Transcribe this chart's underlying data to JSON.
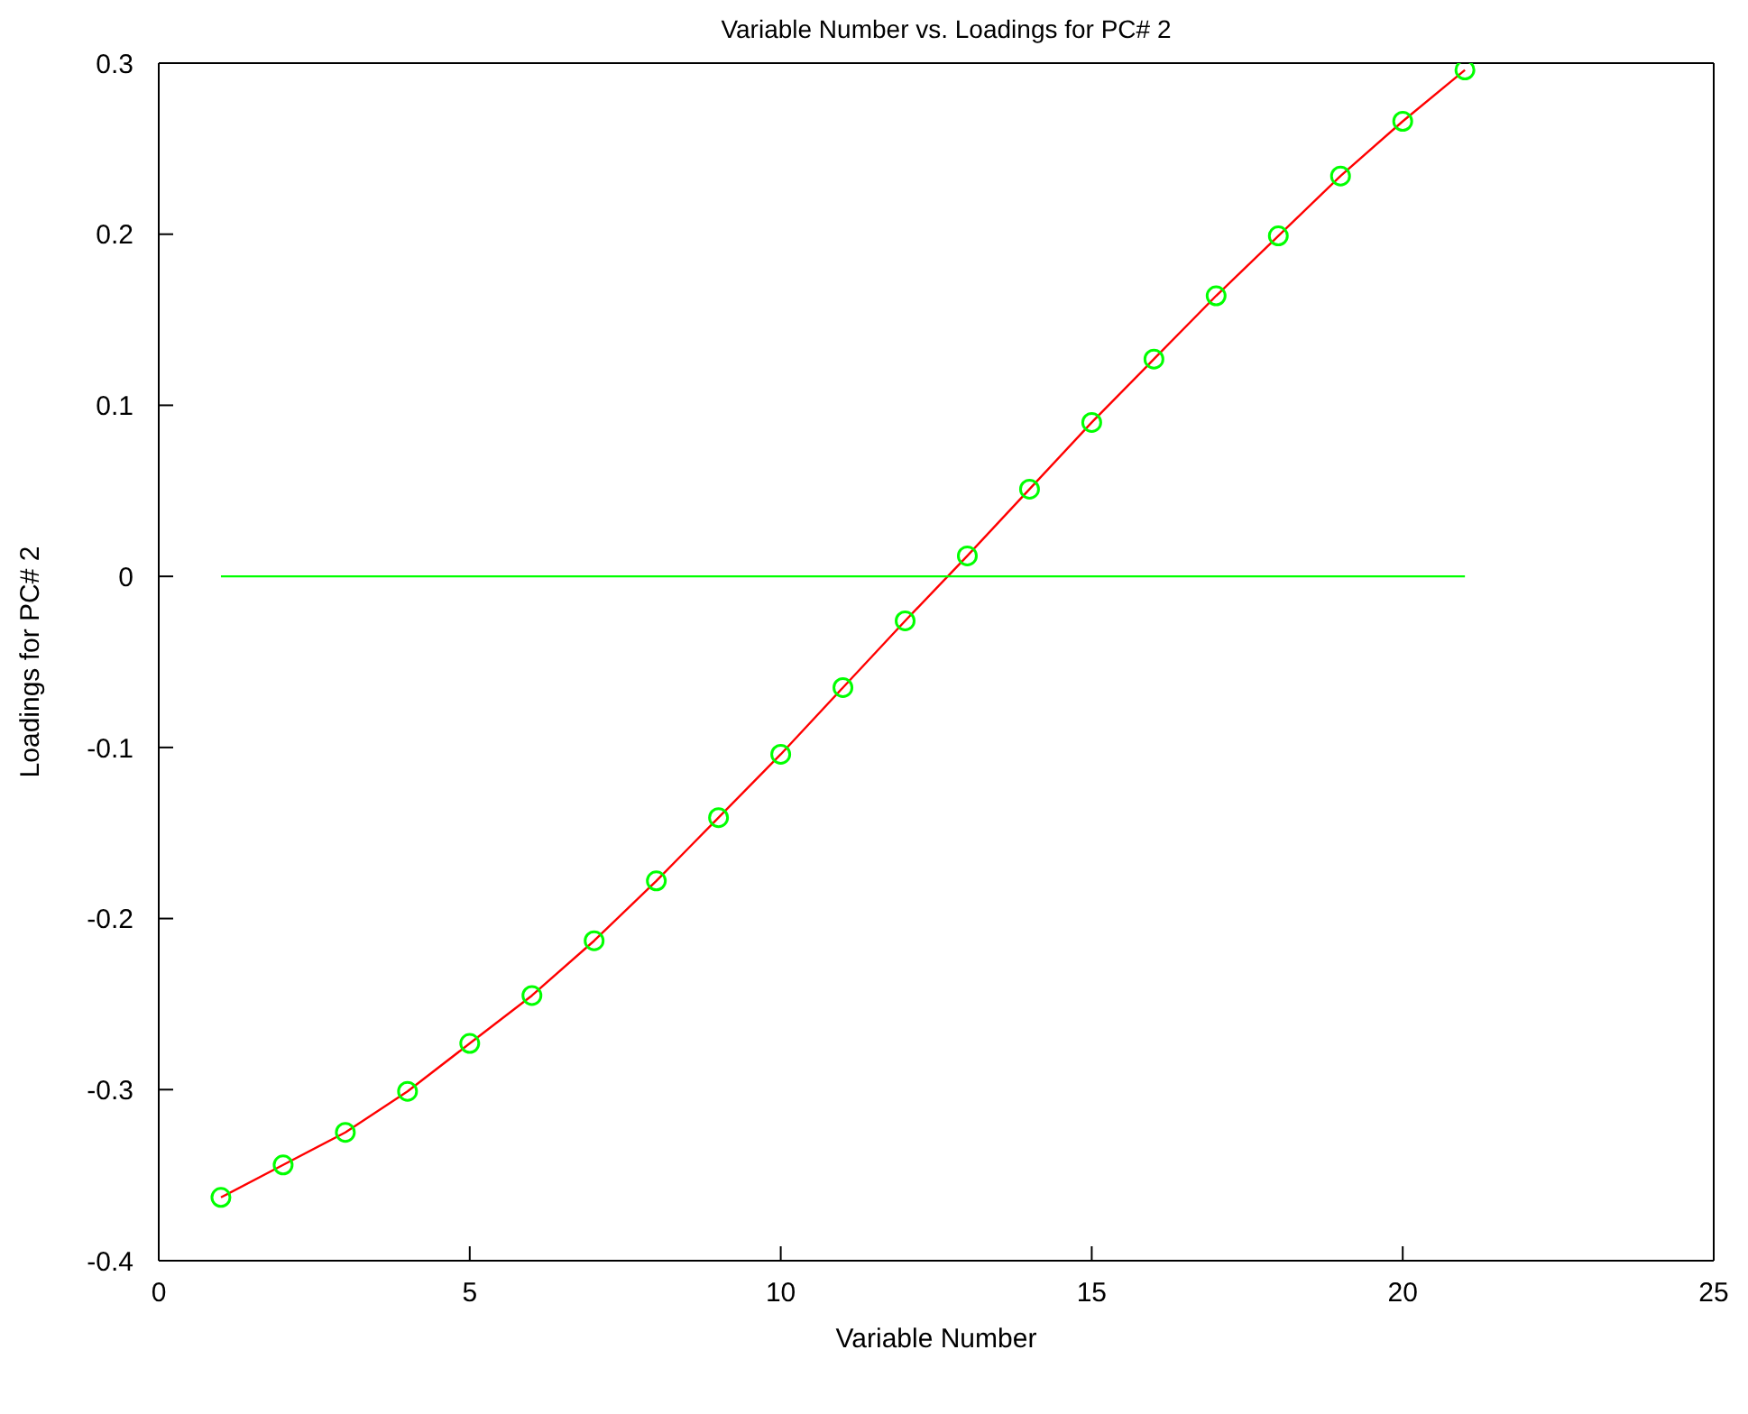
{
  "chart_data": {
    "type": "line",
    "title": "Variable Number vs. Loadings for PC# 2",
    "xlabel": "Variable Number",
    "ylabel": "Loadings for PC# 2",
    "x": [
      1,
      2,
      3,
      4,
      5,
      6,
      7,
      8,
      9,
      10,
      11,
      12,
      13,
      14,
      15,
      16,
      17,
      18,
      19,
      20,
      21
    ],
    "series": [
      {
        "color": "#ff0000",
        "values": [
          -0.363,
          -0.344,
          -0.325,
          -0.301,
          -0.273,
          -0.245,
          -0.213,
          -0.178,
          -0.141,
          -0.104,
          -0.065,
          -0.026,
          0.012,
          0.051,
          0.09,
          0.127,
          0.164,
          0.199,
          0.234,
          0.266,
          0.296
        ]
      },
      {
        "type": "scatter",
        "color": "#00ff00",
        "marker": "circle",
        "values": [
          -0.363,
          -0.344,
          -0.325,
          -0.301,
          -0.273,
          -0.245,
          -0.213,
          -0.178,
          -0.141,
          -0.104,
          -0.065,
          -0.026,
          0.012,
          0.051,
          0.09,
          0.127,
          0.164,
          0.199,
          0.234,
          0.266,
          0.296
        ]
      },
      {
        "color": "#00ff00",
        "x": [
          1,
          21
        ],
        "values": [
          0,
          0
        ]
      }
    ],
    "xlim": [
      0,
      25
    ],
    "xticks": [
      0,
      5,
      10,
      15,
      20,
      25
    ],
    "ylim": [
      -0.4,
      0.3
    ],
    "yticks": [
      -0.4,
      -0.3,
      -0.2,
      -0.1,
      0,
      0.1,
      0.2,
      0.3
    ]
  }
}
